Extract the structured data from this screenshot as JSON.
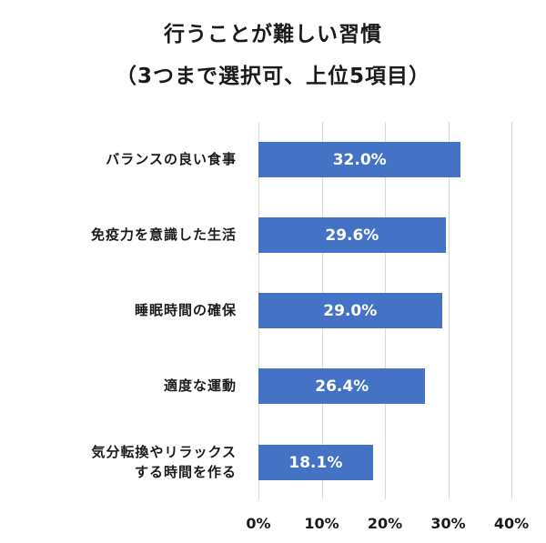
{
  "chart_data": {
    "type": "bar",
    "orientation": "horizontal",
    "title": "行うことが難しい習慣",
    "subtitle": "（3つまで選択可、上位5項目）",
    "categories": [
      "バランスの良い食事",
      "免疫力を意識した生活",
      "睡眠時間の確保",
      "適度な運動",
      "気分転換やリラックスする時間を作る"
    ],
    "category_lines": [
      [
        "バランスの良い食事"
      ],
      [
        "免疫力を意識した生活"
      ],
      [
        "睡眠時間の確保"
      ],
      [
        "適度な運動"
      ],
      [
        "気分転換やリラックス",
        "する時間を作る"
      ]
    ],
    "values": [
      32.0,
      29.6,
      29.0,
      26.4,
      18.1
    ],
    "value_labels": [
      "32.0%",
      "29.6%",
      "29.0%",
      "26.4%",
      "18.1%"
    ],
    "xlabel": "",
    "ylabel": "",
    "xlim": [
      0,
      40
    ],
    "x_ticks": [
      "0%",
      "10%",
      "20%",
      "30%",
      "40%"
    ],
    "grid": true,
    "legend": null,
    "bar_color": "#4472c4"
  }
}
